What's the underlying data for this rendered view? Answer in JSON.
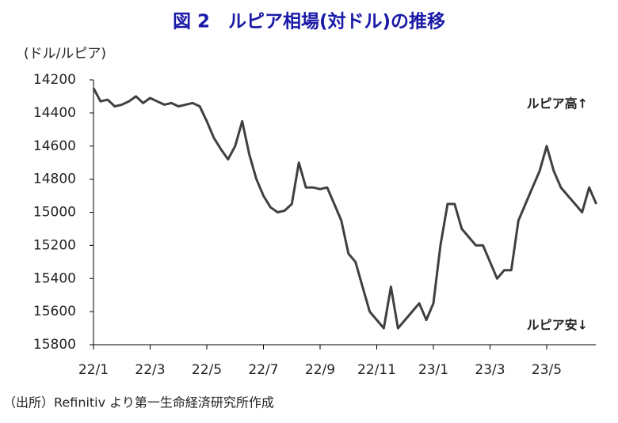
{
  "chart_data": {
    "type": "line",
    "title": "図 2　ルピア相場(対ドル)の推移",
    "y_label": "(ドル/ルピア)",
    "annotations": [
      "ルピア高↑",
      "ルピア安↓"
    ],
    "source": "（出所）Refinitiv より第一生命経済研究所作成",
    "categories": [
      "22/1",
      null,
      null,
      null,
      null,
      null,
      null,
      null,
      "22/3",
      null,
      null,
      null,
      null,
      null,
      null,
      null,
      "22/5",
      null,
      null,
      null,
      null,
      null,
      null,
      null,
      "22/7",
      null,
      null,
      null,
      null,
      null,
      null,
      null,
      "22/9",
      null,
      null,
      null,
      null,
      null,
      null,
      null,
      "22/11",
      null,
      null,
      null,
      null,
      null,
      null,
      null,
      "23/1",
      null,
      null,
      null,
      null,
      null,
      null,
      null,
      "23/3",
      null,
      null,
      null,
      null,
      null,
      null,
      null,
      "23/5",
      null,
      null,
      null,
      null,
      null,
      null,
      null
    ],
    "series": [
      {
        "name": "ルピア相場",
        "color": "#404040",
        "values": [
          14250,
          14330,
          14320,
          14360,
          14350,
          14330,
          14300,
          14340,
          14310,
          14330,
          14350,
          14340,
          14360,
          14350,
          14340,
          14360,
          14450,
          14550,
          14620,
          14680,
          14600,
          14450,
          14650,
          14800,
          14900,
          14970,
          15000,
          14990,
          14950,
          14700,
          14850,
          14850,
          14860,
          14850,
          14950,
          15050,
          15250,
          15300,
          15450,
          15600,
          15650,
          15700,
          15450,
          15700,
          15650,
          15600,
          15550,
          15650,
          15550,
          15200,
          14950,
          14950,
          15100,
          15150,
          15200,
          15200,
          15300,
          15400,
          15350,
          15350,
          15050,
          14950,
          14850,
          14750,
          14600,
          14750,
          14850,
          14900,
          14950,
          15000,
          14850,
          14950
        ]
      }
    ],
    "ylim": [
      14200,
      15800
    ],
    "yticks": [
      14200,
      14400,
      14600,
      14800,
      15000,
      15200,
      15400,
      15600,
      15800
    ],
    "y_inverted": true,
    "grid": false
  }
}
